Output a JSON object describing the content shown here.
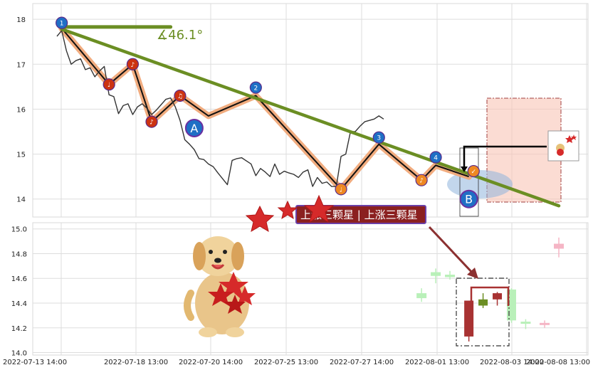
{
  "chart_data": [
    {
      "type": "line",
      "panel": "price",
      "title": "",
      "xlabel": "",
      "ylabel": "",
      "ylim": [
        13.6,
        18.35
      ],
      "y_ticks": [
        14,
        15,
        16,
        17,
        18
      ],
      "grid": true,
      "series": [
        {
          "role": "price",
          "values": [
            17.62,
            17.75,
            17.3,
            17.0,
            17.08,
            17.12,
            16.88,
            16.92,
            16.72,
            16.85,
            16.95,
            16.32,
            16.28,
            15.9,
            16.08,
            16.12,
            15.88,
            16.05,
            16.12,
            16.02,
            15.88,
            15.98,
            16.1,
            16.22,
            16.25,
            16.05,
            15.75,
            15.32,
            15.22,
            15.1,
            14.9,
            14.88,
            14.78,
            14.72,
            14.58,
            14.45,
            14.32,
            14.86,
            14.9,
            14.92,
            14.85,
            14.78,
            14.52,
            14.68,
            14.6,
            14.5,
            14.78,
            14.55,
            14.62,
            14.58,
            14.55,
            14.48,
            14.6,
            14.65,
            14.28,
            14.48,
            14.35,
            14.38,
            14.28,
            14.28,
            14.95,
            15.0,
            15.5,
            15.5,
            15.62,
            15.72,
            15.75,
            15.78,
            15.85,
            15.78
          ],
          "color": "#333333"
        },
        {
          "role": "swing-path",
          "points": [
            [
              1,
              17.8
            ],
            [
              11,
              16.55
            ],
            [
              16,
              17.0
            ],
            [
              20,
              15.72
            ],
            [
              26,
              16.3
            ],
            [
              32,
              15.85
            ],
            [
              42,
              16.3
            ],
            [
              60,
              14.22
            ],
            [
              68,
              15.22
            ],
            [
              77,
              14.42
            ],
            [
              80,
              14.75
            ],
            [
              87,
              14.5
            ]
          ],
          "color": "#f0a878"
        }
      ],
      "trendlines": [
        {
          "from": [
            1,
            17.78
          ],
          "to": [
            106,
            13.85
          ],
          "color": "#6b8e23"
        },
        {
          "from": [
            1,
            17.83
          ],
          "to": [
            24,
            17.83
          ],
          "color": "#6b8e23"
        }
      ],
      "angle_label": "∡46.1°",
      "markers": [
        {
          "label": "1",
          "x": 1,
          "y": 17.92,
          "color": "#1f6fc5"
        },
        {
          "label": "2",
          "x": 42,
          "y": 16.48,
          "color": "#1f6fc5"
        },
        {
          "label": "3",
          "x": 68,
          "y": 15.37,
          "color": "#1f6fc5"
        },
        {
          "label": "4",
          "x": 80,
          "y": 14.93,
          "color": "#1f6fc5"
        },
        {
          "label": "A",
          "x": 29,
          "y": 15.58,
          "color": "#1f6fc5"
        },
        {
          "label": "B",
          "x": 87,
          "y": 14.0,
          "color": "#1f6fc5"
        },
        {
          "label": "♩",
          "x": 11,
          "y": 16.55,
          "color": "#cc3311"
        },
        {
          "label": "♪",
          "x": 16,
          "y": 17.0,
          "color": "#cc3311"
        },
        {
          "label": "♪",
          "x": 20,
          "y": 15.72,
          "color": "#cc3311"
        },
        {
          "label": "♫",
          "x": 26,
          "y": 16.3,
          "color": "#cc3311"
        },
        {
          "label": "♩",
          "x": 60,
          "y": 14.22,
          "color": "#ee8822"
        },
        {
          "label": "♪",
          "x": 77,
          "y": 14.42,
          "color": "#ee8822"
        },
        {
          "label": "✓",
          "x": 88,
          "y": 14.62,
          "color": "#ee8822"
        }
      ]
    },
    {
      "type": "candlestick",
      "panel": "detail",
      "title": "",
      "ylim": [
        13.98,
        15.05
      ],
      "y_ticks": [
        14.0,
        14.2,
        14.4,
        14.6,
        14.8,
        15.0
      ],
      "x_tick_labels": [
        "2022-07-13 14:00",
        "2022-07-18 13:00",
        "2022-07-20 14:00",
        "2022-07-25 13:00",
        "2022-07-27 14:00",
        "2022-08-01 13:00",
        "2022-08-03 14:00",
        "2022-08-08 13:00"
      ],
      "candles": [
        {
          "x": 77,
          "open": 14.44,
          "close": 14.48,
          "high": 14.52,
          "low": 14.41,
          "color": "#b9f0b9"
        },
        {
          "x": 80,
          "open": 14.62,
          "close": 14.65,
          "high": 14.68,
          "low": 14.56,
          "color": "#b9f0b9"
        },
        {
          "x": 83,
          "open": 14.61,
          "close": 14.63,
          "high": 14.66,
          "low": 14.59,
          "color": "#b9f0b9"
        },
        {
          "x": 87,
          "open": 14.13,
          "close": 14.42,
          "high": 14.42,
          "low": 14.09,
          "color": "#a83232"
        },
        {
          "x": 90,
          "open": 14.43,
          "close": 14.38,
          "high": 14.48,
          "low": 14.36,
          "color": "#6b8e23"
        },
        {
          "x": 93,
          "open": 14.48,
          "close": 14.43,
          "high": 14.49,
          "low": 14.38,
          "color": "#a83232"
        },
        {
          "x": 96,
          "open": 14.51,
          "close": 14.26,
          "high": 14.52,
          "low": 14.24,
          "color": "#b9f0b9"
        },
        {
          "x": 99,
          "open": 14.25,
          "close": 14.24,
          "high": 14.27,
          "low": 14.19,
          "color": "#b9f0b9"
        },
        {
          "x": 103,
          "open": 14.24,
          "close": 14.23,
          "high": 14.26,
          "low": 14.2,
          "color": "#f5b5c5"
        },
        {
          "x": 106,
          "open": 14.88,
          "close": 14.84,
          "high": 14.93,
          "low": 14.77,
          "color": "#f5b5c5"
        }
      ]
    }
  ],
  "annotation": {
    "banner_text": "上涨三颗星 | 上涨三颗星"
  },
  "colors": {
    "trend": "#6b8e23",
    "swing_fill": "#f0a878",
    "marker_blue": "#1f6fc5",
    "banner_bg": "#8b2020",
    "zone_fill": "#f9c5b5",
    "arrow": "#8b3030"
  }
}
